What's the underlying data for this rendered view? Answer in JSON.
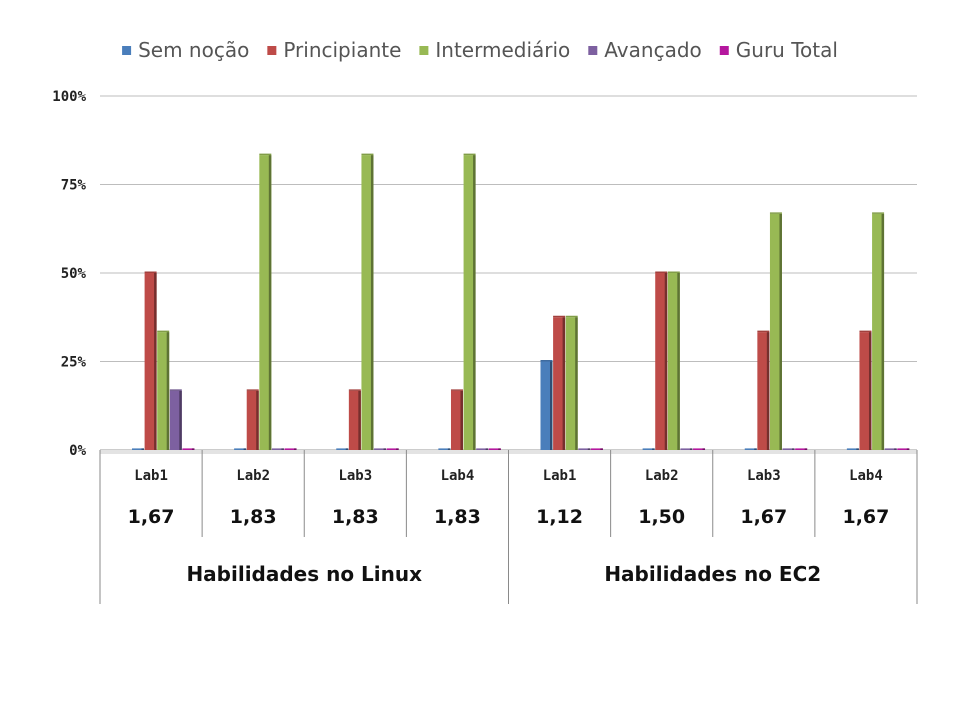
{
  "chart_data": {
    "type": "bar",
    "title": "",
    "ylabel": "",
    "ylim": [
      0,
      100
    ],
    "y_ticks": [
      "0%",
      "25%",
      "50%",
      "75%",
      "100%"
    ],
    "y_tick_values": [
      0,
      25,
      50,
      75,
      100
    ],
    "grid": true,
    "legend_position": "top",
    "categories": [
      "Lab1",
      "Lab2",
      "Lab3",
      "Lab4",
      "Lab1",
      "Lab2",
      "Lab3",
      "Lab4"
    ],
    "scores": [
      "1,67",
      "1,83",
      "1,83",
      "1,83",
      "1,12",
      "1,50",
      "1,67",
      "1,67"
    ],
    "groups": [
      {
        "label": "Habilidades no Linux",
        "span": 4
      },
      {
        "label": "Habilidades no EC2",
        "span": 4
      }
    ],
    "series": [
      {
        "name": "Sem noção",
        "color": "#4a7ebb",
        "values": [
          0,
          0,
          0,
          0,
          25,
          0,
          0,
          0
        ]
      },
      {
        "name": "Principiante",
        "color": "#be4b48",
        "values": [
          50,
          16.7,
          16.7,
          16.7,
          37.5,
          50,
          33.3,
          33.3
        ]
      },
      {
        "name": "Intermediário",
        "color": "#98b954",
        "values": [
          33.3,
          83.3,
          83.3,
          83.3,
          37.5,
          50,
          66.7,
          66.7
        ]
      },
      {
        "name": "Avançado",
        "color": "#7d60a0",
        "values": [
          16.7,
          0,
          0,
          0,
          0,
          0,
          0,
          0
        ]
      },
      {
        "name": "Guru Total",
        "color": "#b5179e",
        "values": [
          0,
          0,
          0,
          0,
          0,
          0,
          0,
          0
        ]
      }
    ]
  }
}
